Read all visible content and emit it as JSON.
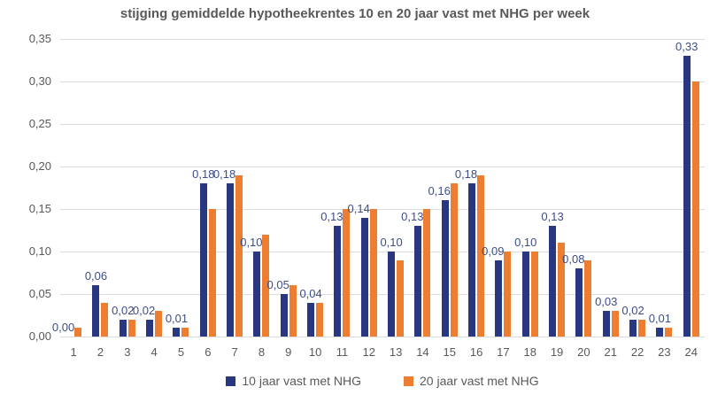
{
  "title": "stijging gemiddelde hypotheekrentes 10 en 20 jaar vast met NHG per week",
  "chart_data": {
    "type": "bar",
    "title": "stijging gemiddelde hypotheekrentes 10 en 20 jaar vast met NHG per week",
    "xlabel": "",
    "ylabel": "",
    "ylim": [
      0,
      0.35
    ],
    "grid": true,
    "legend_position": "bottom",
    "decimal_style": "comma",
    "categories": [
      "1",
      "2",
      "3",
      "4",
      "5",
      "6",
      "7",
      "8",
      "9",
      "10",
      "11",
      "12",
      "13",
      "14",
      "15",
      "16",
      "17",
      "18",
      "19",
      "20",
      "21",
      "22",
      "23",
      "24"
    ],
    "series": [
      {
        "name": "10 jaar vast met NHG",
        "color": "#293780",
        "values": [
          0.0,
          0.06,
          0.02,
          0.02,
          0.01,
          0.18,
          0.18,
          0.1,
          0.05,
          0.04,
          0.13,
          0.14,
          0.1,
          0.13,
          0.16,
          0.18,
          0.09,
          0.1,
          0.13,
          0.08,
          0.03,
          0.02,
          0.01,
          0.33
        ]
      },
      {
        "name": "20 jaar vast met NHG",
        "color": "#ec7d31",
        "values": [
          0.01,
          0.04,
          0.02,
          0.03,
          0.01,
          0.15,
          0.19,
          0.12,
          0.06,
          0.04,
          0.15,
          0.15,
          0.09,
          0.15,
          0.18,
          0.19,
          0.1,
          0.1,
          0.11,
          0.09,
          0.03,
          0.02,
          0.01,
          0.3
        ]
      }
    ],
    "data_labels_series": "10 jaar vast met NHG",
    "data_labels": [
      "0,00",
      "0,06",
      "0,02",
      "0,02",
      "0,01",
      "0,18",
      "0,18",
      "0,10",
      "0,05",
      "0,04",
      "0,13",
      "0,14",
      "0,10",
      "0,13",
      "0,16",
      "0,18",
      "0,09",
      "0,10",
      "0,13",
      "0,08",
      "0,03",
      "0,02",
      "0,01",
      "0,33"
    ],
    "yticks": [
      {
        "label": "0,35",
        "value": 0.35
      },
      {
        "label": "0,30",
        "value": 0.3
      },
      {
        "label": "0,25",
        "value": 0.25
      },
      {
        "label": "0,20",
        "value": 0.2
      },
      {
        "label": "0,15",
        "value": 0.15
      },
      {
        "label": "0,10",
        "value": 0.1
      },
      {
        "label": "0,05",
        "value": 0.05
      },
      {
        "label": "0,00",
        "value": 0.0
      }
    ]
  },
  "colors": {
    "bar_10_jaar": "#293780",
    "bar_20_jaar": "#ec7d31",
    "data_label": "#3d4e87",
    "axis_text": "#595959",
    "title_text": "#595959",
    "gridline": "#dcdcdc",
    "background": "#ffffff"
  }
}
